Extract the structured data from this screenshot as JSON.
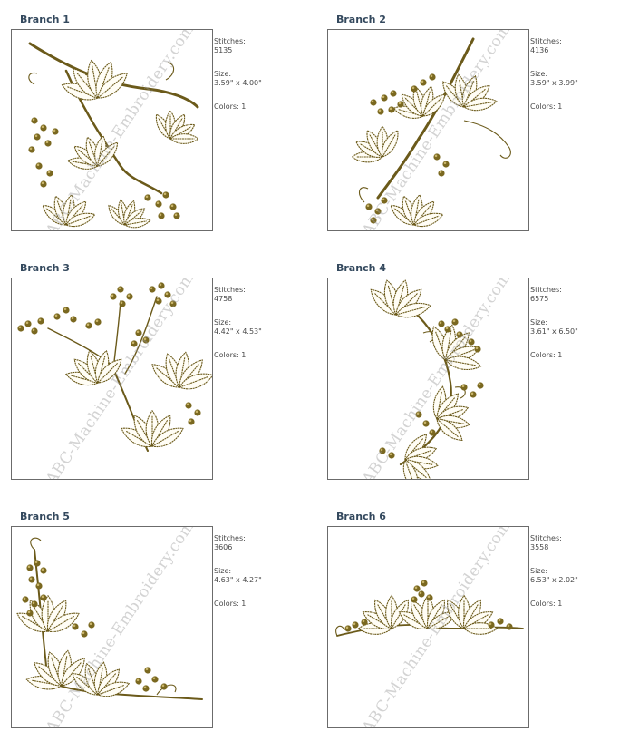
{
  "colors": {
    "thread": "#6b5a1a",
    "bead": "#7a6820",
    "title": "#34495e",
    "frame": "#6b6b6b"
  },
  "watermark": "ABC-Machine-Embroidery.com",
  "stitches_label": "Stitches:",
  "size_label": "Size:",
  "designs": [
    {
      "title": "Branch 1",
      "stitches": "5135",
      "size": "3.59\" x 4.00\"",
      "colors": "Colors: 1"
    },
    {
      "title": "Branch 2",
      "stitches": "4136",
      "size": "3.59\" x 3.99\"",
      "colors": "Colors: 1"
    },
    {
      "title": "Branch 3",
      "stitches": "4758",
      "size": "4.42\" x 4.53\"",
      "colors": "Colors: 1"
    },
    {
      "title": "Branch 4",
      "stitches": "6575",
      "size": "3.61\" x 6.50\"",
      "colors": "Colors: 1"
    },
    {
      "title": "Branch 5",
      "stitches": "3606",
      "size": "4.63\" x 4.27\"",
      "colors": "Colors: 1"
    },
    {
      "title": "Branch 6",
      "stitches": "3558",
      "size": "6.53\" x 2.02\"",
      "colors": "Colors: 1"
    }
  ]
}
